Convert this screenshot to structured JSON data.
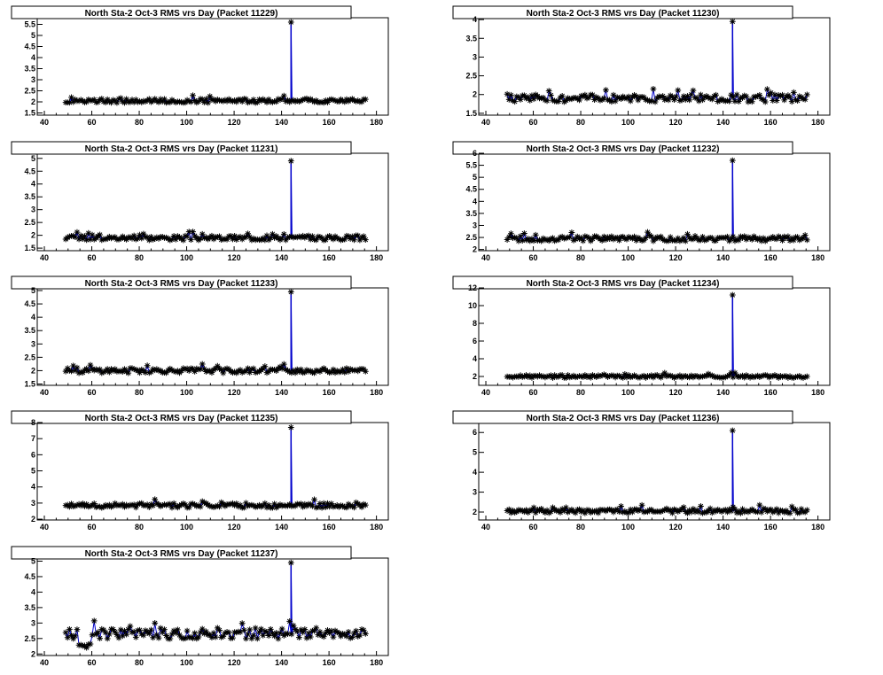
{
  "colors": {
    "markers": "#000000",
    "line": "#0000cc",
    "frame": "#000000",
    "background": "#ffffff"
  },
  "chart_data": [
    {
      "type": "scatter",
      "title": "North Sta-2 Oct-3 RMS vrs Day (Packet 11229)",
      "xlim": [
        37,
        185
      ],
      "xticks": [
        40,
        60,
        80,
        100,
        120,
        140,
        160,
        180
      ],
      "ylim": [
        1.4,
        5.8
      ],
      "yticks": [
        1.5,
        2,
        2.5,
        3,
        3.5,
        4,
        4.5,
        5,
        5.5
      ],
      "baseline": 2.05,
      "noise": 0.09,
      "spike": {
        "x": 144,
        "y": 5.6
      },
      "x_range": [
        49,
        176
      ]
    },
    {
      "type": "scatter",
      "title": "North Sta-2 Oct-3 RMS vrs Day (Packet 11230)",
      "xlim": [
        37,
        185
      ],
      "xticks": [
        40,
        60,
        80,
        100,
        120,
        140,
        160,
        180
      ],
      "ylim": [
        1.45,
        4.05
      ],
      "yticks": [
        1.5,
        2,
        2.5,
        3,
        3.5,
        4
      ],
      "baseline": 1.9,
      "noise": 0.1,
      "spike": {
        "x": 144,
        "y": 3.95
      },
      "x_range": [
        49,
        176
      ]
    },
    {
      "type": "scatter",
      "title": "North Sta-2 Oct-3 RMS vrs Day (Packet 11231)",
      "xlim": [
        37,
        185
      ],
      "xticks": [
        40,
        60,
        80,
        100,
        120,
        140,
        160,
        180
      ],
      "ylim": [
        1.4,
        5.2
      ],
      "yticks": [
        1.5,
        2,
        2.5,
        3,
        3.5,
        4,
        4.5,
        5
      ],
      "baseline": 1.9,
      "noise": 0.09,
      "spike": {
        "x": 144,
        "y": 4.9
      },
      "x_range": [
        49,
        176
      ]
    },
    {
      "type": "scatter",
      "title": "North Sta-2 Oct-3 RMS vrs Day (Packet 11232)",
      "xlim": [
        37,
        185
      ],
      "xticks": [
        40,
        60,
        80,
        100,
        120,
        140,
        160,
        180
      ],
      "ylim": [
        1.95,
        6.0
      ],
      "yticks": [
        2,
        2.5,
        3,
        3.5,
        4,
        4.5,
        5,
        5.5,
        6
      ],
      "baseline": 2.45,
      "noise": 0.1,
      "spike": {
        "x": 144,
        "y": 5.7
      },
      "x_range": [
        49,
        176
      ]
    },
    {
      "type": "scatter",
      "title": "North Sta-2 Oct-3 RMS vrs Day (Packet 11233)",
      "xlim": [
        37,
        185
      ],
      "xticks": [
        40,
        60,
        80,
        100,
        120,
        140,
        160,
        180
      ],
      "ylim": [
        1.45,
        5.1
      ],
      "yticks": [
        1.5,
        2,
        2.5,
        3,
        3.5,
        4,
        4.5,
        5
      ],
      "baseline": 2.0,
      "noise": 0.09,
      "spike": {
        "x": 144,
        "y": 4.95
      },
      "x_range": [
        49,
        176
      ]
    },
    {
      "type": "scatter",
      "title": "North Sta-2 Oct-3 RMS vrs Day (Packet 11234)",
      "xlim": [
        37,
        185
      ],
      "xticks": [
        40,
        60,
        80,
        100,
        120,
        140,
        160,
        180
      ],
      "ylim": [
        1.0,
        12.0
      ],
      "yticks": [
        2,
        4,
        6,
        8,
        10,
        12
      ],
      "baseline": 2.0,
      "noise": 0.15,
      "spike": {
        "x": 144,
        "y": 11.2
      },
      "x_range": [
        49,
        176
      ]
    },
    {
      "type": "scatter",
      "title": "North Sta-2 Oct-3 RMS vrs Day (Packet 11235)",
      "xlim": [
        37,
        185
      ],
      "xticks": [
        40,
        60,
        80,
        100,
        120,
        140,
        160,
        180
      ],
      "ylim": [
        1.95,
        8.0
      ],
      "yticks": [
        2,
        3,
        4,
        5,
        6,
        7,
        8
      ],
      "baseline": 2.85,
      "noise": 0.14,
      "spike": {
        "x": 144,
        "y": 7.7
      },
      "x_range": [
        49,
        176
      ]
    },
    {
      "type": "scatter",
      "title": "North Sta-2 Oct-3 RMS vrs Day (Packet 11236)",
      "xlim": [
        37,
        185
      ],
      "xticks": [
        40,
        60,
        80,
        100,
        120,
        140,
        160,
        180
      ],
      "ylim": [
        1.6,
        6.5
      ],
      "yticks": [
        2,
        3,
        4,
        5,
        6
      ],
      "baseline": 2.05,
      "noise": 0.11,
      "spike": {
        "x": 144,
        "y": 6.1
      },
      "x_range": [
        49,
        176
      ]
    },
    {
      "type": "scatter",
      "title": "North Sta-2 Oct-3 RMS vrs Day (Packet 11237)",
      "xlim": [
        37,
        185
      ],
      "xticks": [
        40,
        60,
        80,
        100,
        120,
        140,
        160,
        180
      ],
      "ylim": [
        1.95,
        5.1
      ],
      "yticks": [
        2,
        2.5,
        3,
        3.5,
        4,
        4.5,
        5
      ],
      "baseline": 2.65,
      "noise": 0.16,
      "spike": {
        "x": 144,
        "y": 4.95
      },
      "x_range": [
        49,
        176
      ],
      "dip": {
        "from": 54,
        "to": 60,
        "y": 2.25
      }
    }
  ]
}
